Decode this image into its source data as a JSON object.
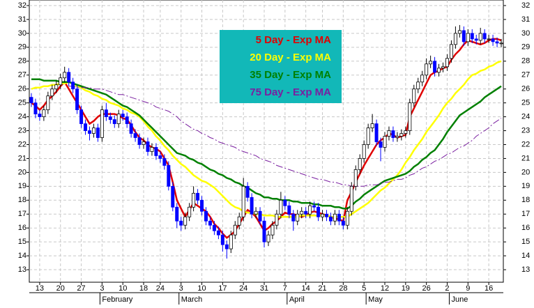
{
  "chart_data": {
    "type": "candlestick",
    "categories": [
      null,
      null,
      "13",
      null,
      null,
      null,
      null,
      "20",
      null,
      null,
      null,
      null,
      "27",
      null,
      null,
      null,
      null,
      "3",
      null,
      null,
      null,
      null,
      "10",
      null,
      null,
      null,
      null,
      "18",
      null,
      null,
      null,
      "24",
      null,
      null,
      null,
      null,
      "3",
      null,
      null,
      null,
      null,
      "10",
      null,
      null,
      null,
      null,
      "17",
      null,
      null,
      null,
      null,
      "24",
      null,
      null,
      null,
      null,
      "31",
      null,
      null,
      null,
      null,
      "7",
      null,
      null,
      null,
      null,
      "14",
      null,
      null,
      null,
      "21",
      null,
      null,
      null,
      null,
      "28",
      null,
      null,
      null,
      null,
      "5",
      null,
      null,
      null,
      null,
      "12",
      null,
      null,
      null,
      null,
      "19",
      null,
      null,
      null,
      null,
      "26",
      null,
      null,
      null,
      null,
      "2",
      null,
      null,
      null,
      null,
      "9",
      null,
      null,
      null,
      null,
      "16",
      null,
      null,
      null
    ],
    "month_labels": [
      null,
      null,
      null,
      null,
      null,
      null,
      null,
      null,
      null,
      null,
      null,
      null,
      null,
      null,
      null,
      null,
      null,
      "February",
      null,
      null,
      null,
      null,
      null,
      null,
      null,
      null,
      null,
      null,
      null,
      null,
      null,
      null,
      null,
      null,
      null,
      null,
      "March",
      null,
      null,
      null,
      null,
      null,
      null,
      null,
      null,
      null,
      null,
      null,
      null,
      null,
      null,
      null,
      null,
      null,
      null,
      null,
      null,
      null,
      null,
      null,
      null,
      null,
      "April",
      null,
      null,
      null,
      null,
      null,
      null,
      null,
      null,
      null,
      null,
      null,
      null,
      null,
      null,
      null,
      null,
      null,
      null,
      "May",
      null,
      null,
      null,
      null,
      null,
      null,
      null,
      null,
      null,
      null,
      null,
      null,
      null,
      null,
      null,
      null,
      null,
      null,
      null,
      "June",
      null,
      null,
      null,
      null,
      null,
      null,
      null,
      null,
      null,
      null,
      null,
      null,
      null
    ],
    "open": [
      25.4,
      25.0,
      24.2,
      24.0,
      24.5,
      25.5,
      26.0,
      26.3,
      26.8,
      27.2,
      26.5,
      26.0,
      24.5,
      23.5,
      23.0,
      22.8,
      23.2,
      22.5,
      24.5,
      24.0,
      23.8,
      23.5,
      24.2,
      24.0,
      23.5,
      22.8,
      22.5,
      22.0,
      22.2,
      21.5,
      21.8,
      21.2,
      21.0,
      20.5,
      19.0,
      17.5,
      16.5,
      16.2,
      16.8,
      17.5,
      18.5,
      18.0,
      17.2,
      16.5,
      16.2,
      15.8,
      15.5,
      14.8,
      14.5,
      15.5,
      16.2,
      16.8,
      19.0,
      18.2,
      17.0,
      17.2,
      16.5,
      15.0,
      15.5,
      16.2,
      17.0,
      18.0,
      17.6,
      17.0,
      16.5,
      17.0,
      17.2,
      17.0,
      17.6,
      17.5,
      16.8,
      17.0,
      16.8,
      16.5,
      17.0,
      16.5,
      16.2,
      17.2,
      19.0,
      20.2,
      21.0,
      22.0,
      23.2,
      23.5,
      22.2,
      21.8,
      22.6,
      23.0,
      22.5,
      22.6,
      22.8,
      23.0,
      25.0,
      26.0,
      26.5,
      27.0,
      27.8,
      28.0,
      27.2,
      27.5,
      27.6,
      28.2,
      29.2,
      30.0,
      30.2,
      29.4,
      30.0,
      29.6,
      29.5,
      30.0,
      29.6,
      29.6,
      29.4,
      29.3
    ],
    "high": [
      25.7,
      25.3,
      24.5,
      24.8,
      25.8,
      26.3,
      26.6,
      27.1,
      27.6,
      27.5,
      26.8,
      26.3,
      24.8,
      23.8,
      23.3,
      23.5,
      23.5,
      24.8,
      25.0,
      24.3,
      24.1,
      24.5,
      24.5,
      24.3,
      23.8,
      23.1,
      22.8,
      22.5,
      22.5,
      22.1,
      22.1,
      21.5,
      21.3,
      20.8,
      19.3,
      17.8,
      16.8,
      17.1,
      17.8,
      19.0,
      18.8,
      18.3,
      17.5,
      16.8,
      16.5,
      16.1,
      15.8,
      15.1,
      15.8,
      16.5,
      17.1,
      19.6,
      19.3,
      18.5,
      17.5,
      17.5,
      16.8,
      15.8,
      16.5,
      17.3,
      18.6,
      18.3,
      17.9,
      17.3,
      17.3,
      17.5,
      17.5,
      17.9,
      17.9,
      17.8,
      17.3,
      17.3,
      17.1,
      17.3,
      17.3,
      16.8,
      17.5,
      19.3,
      20.5,
      21.3,
      22.3,
      23.5,
      24.2,
      23.8,
      22.5,
      22.9,
      23.3,
      23.3,
      22.9,
      23.1,
      23.3,
      25.3,
      26.3,
      26.8,
      27.3,
      28.2,
      28.4,
      28.3,
      27.8,
      27.9,
      28.5,
      29.5,
      30.5,
      30.6,
      30.5,
      30.3,
      30.3,
      29.9,
      30.4,
      30.3,
      29.9,
      29.9,
      29.7,
      29.6
    ],
    "low": [
      24.7,
      23.9,
      23.7,
      23.7,
      24.2,
      25.2,
      25.7,
      26.0,
      26.5,
      26.2,
      25.7,
      24.2,
      23.2,
      22.7,
      22.3,
      22.5,
      22.2,
      22.2,
      23.7,
      23.5,
      23.2,
      23.2,
      23.7,
      23.2,
      22.5,
      22.2,
      21.7,
      21.7,
      21.2,
      21.2,
      20.9,
      20.7,
      20.2,
      18.7,
      17.2,
      16.0,
      15.8,
      15.9,
      16.5,
      17.2,
      17.7,
      16.9,
      16.2,
      15.9,
      15.5,
      15.2,
      14.3,
      13.8,
      14.2,
      15.2,
      15.9,
      16.5,
      17.9,
      16.7,
      16.7,
      16.2,
      14.6,
      14.7,
      15.2,
      15.9,
      16.7,
      17.3,
      16.7,
      15.8,
      16.2,
      16.7,
      16.7,
      16.7,
      17.2,
      16.5,
      16.5,
      16.5,
      16.2,
      16.2,
      16.2,
      15.9,
      15.9,
      16.9,
      18.7,
      19.9,
      20.7,
      21.7,
      22.9,
      21.9,
      20.8,
      21.5,
      22.3,
      22.2,
      22.2,
      22.3,
      22.5,
      22.7,
      24.7,
      25.7,
      26.2,
      26.7,
      27.5,
      26.9,
      26.9,
      27.2,
      27.3,
      27.9,
      28.9,
      29.7,
      29.1,
      29.1,
      29.3,
      29.2,
      29.2,
      29.3,
      29.3,
      29.1,
      29.0,
      29.0
    ],
    "close": [
      25.0,
      24.2,
      24.0,
      24.5,
      25.5,
      26.0,
      26.3,
      26.8,
      27.2,
      26.5,
      26.0,
      24.5,
      23.5,
      23.0,
      22.8,
      23.2,
      22.5,
      24.5,
      24.0,
      23.8,
      23.5,
      24.2,
      24.0,
      23.5,
      22.8,
      22.5,
      22.0,
      22.2,
      21.5,
      21.8,
      21.2,
      21.0,
      20.5,
      19.0,
      17.5,
      16.5,
      16.2,
      16.8,
      17.5,
      18.5,
      18.0,
      17.2,
      16.5,
      16.2,
      15.8,
      15.5,
      14.8,
      14.5,
      15.5,
      16.2,
      16.8,
      19.0,
      18.2,
      17.0,
      17.2,
      16.5,
      15.0,
      15.5,
      16.2,
      17.0,
      18.0,
      17.6,
      17.0,
      16.5,
      17.0,
      17.2,
      17.0,
      17.6,
      17.5,
      16.8,
      17.0,
      16.8,
      16.5,
      17.0,
      16.5,
      16.2,
      17.2,
      19.0,
      20.2,
      21.0,
      22.0,
      23.2,
      23.5,
      22.2,
      21.8,
      22.6,
      23.0,
      22.5,
      22.6,
      22.8,
      23.0,
      25.0,
      26.0,
      26.5,
      27.0,
      27.8,
      28.0,
      27.2,
      27.5,
      27.6,
      28.2,
      29.2,
      30.0,
      30.2,
      29.4,
      30.0,
      29.6,
      29.5,
      30.0,
      29.6,
      29.6,
      29.4,
      29.3,
      29.3
    ],
    "up_color": "#ffffff",
    "down_color": "#0000ff",
    "series": [
      {
        "name": "5 Day - Exp MA",
        "color": "#e00000",
        "width": 2.5,
        "dash": "none",
        "values": [
          25.0,
          24.8,
          24.5,
          24.8,
          25.2,
          25.5,
          25.8,
          26.2,
          26.5,
          26.0,
          25.5,
          25.0,
          24.5,
          24.0,
          23.5,
          23.7,
          24.0,
          24.2,
          24.2,
          24.2,
          24.2,
          24.1,
          23.9,
          23.8,
          23.4,
          22.9,
          22.5,
          22.3,
          22.0,
          21.8,
          21.7,
          21.5,
          21.0,
          20.5,
          19.3,
          18.0,
          17.4,
          16.8,
          17.3,
          17.8,
          17.6,
          17.4,
          17.2,
          16.8,
          16.3,
          16.0,
          15.6,
          15.3,
          15.5,
          15.8,
          16.3,
          16.8,
          17.3,
          17.1,
          16.8,
          16.3,
          15.8,
          16.0,
          16.3,
          16.5,
          16.8,
          17.1,
          17.0,
          17.0,
          16.9,
          16.8,
          16.9,
          17.1,
          17.2,
          17.1,
          17.0,
          16.9,
          16.8,
          16.7,
          16.6,
          16.5,
          18.0,
          18.6,
          19.3,
          19.9,
          20.5,
          21.0,
          21.5,
          22.0,
          22.3,
          22.5,
          22.8,
          22.7,
          22.5,
          22.6,
          22.7,
          24.0,
          24.6,
          25.2,
          25.8,
          26.4,
          27.0,
          27.2,
          27.3,
          27.5,
          27.6,
          28.1,
          28.5,
          28.8,
          29.2,
          29.5,
          29.4,
          29.3,
          29.2,
          29.3,
          29.5,
          29.6,
          29.6,
          29.5
        ]
      },
      {
        "name": "20 Day - Exp MA",
        "color": "#ffff00",
        "width": 2.5,
        "dash": "none",
        "values": [
          26.0,
          26.1,
          26.1,
          26.2,
          26.2,
          26.3,
          26.3,
          26.4,
          26.4,
          26.5,
          26.4,
          26.2,
          26.1,
          25.9,
          25.8,
          25.6,
          25.5,
          25.3,
          25.2,
          25.0,
          24.9,
          24.8,
          24.6,
          24.5,
          24.3,
          24.2,
          24.0,
          23.7,
          23.3,
          23.0,
          22.6,
          22.3,
          21.9,
          21.6,
          21.2,
          20.9,
          20.6,
          20.4,
          20.1,
          19.8,
          19.6,
          19.4,
          19.3,
          19.1,
          18.9,
          18.6,
          18.3,
          18.0,
          17.7,
          17.5,
          17.4,
          17.2,
          17.1,
          17.1,
          17.0,
          17.0,
          16.9,
          16.9,
          16.9,
          16.8,
          16.8,
          16.8,
          16.8,
          16.8,
          16.8,
          16.9,
          16.9,
          16.9,
          16.9,
          16.9,
          16.9,
          16.9,
          16.8,
          16.8,
          16.8,
          16.8,
          16.8,
          17.0,
          17.2,
          17.4,
          17.6,
          17.8,
          18.1,
          18.4,
          18.7,
          18.9,
          19.2,
          19.5,
          19.8,
          20.2,
          20.7,
          21.1,
          21.6,
          22.0,
          22.4,
          22.9,
          23.3,
          23.7,
          24.1,
          24.6,
          25.0,
          25.3,
          25.7,
          26.0,
          26.3,
          26.7,
          27.0,
          27.1,
          27.3,
          27.4,
          27.6,
          27.7,
          27.9,
          28.0
        ]
      },
      {
        "name": "35 Day - Exp MA",
        "color": "#008000",
        "width": 2.5,
        "dash": "none",
        "values": [
          26.7,
          26.7,
          26.7,
          26.6,
          26.6,
          26.6,
          26.6,
          26.5,
          26.5,
          26.5,
          26.4,
          26.3,
          26.2,
          26.1,
          26.0,
          25.9,
          25.8,
          25.7,
          25.6,
          25.4,
          25.2,
          25.0,
          24.8,
          24.7,
          24.5,
          24.3,
          24.1,
          23.8,
          23.5,
          23.2,
          22.9,
          22.6,
          22.3,
          22.0,
          21.7,
          21.4,
          21.3,
          21.2,
          21.0,
          20.9,
          20.7,
          20.6,
          20.4,
          20.2,
          20.1,
          19.9,
          19.8,
          19.6,
          19.5,
          19.3,
          19.2,
          19.0,
          18.9,
          18.7,
          18.5,
          18.4,
          18.2,
          18.2,
          18.1,
          18.1,
          18.0,
          18.0,
          18.0,
          17.9,
          17.9,
          17.8,
          17.8,
          17.8,
          17.7,
          17.7,
          17.6,
          17.6,
          17.6,
          17.5,
          17.5,
          17.4,
          17.4,
          17.6,
          17.9,
          18.1,
          18.4,
          18.6,
          18.8,
          19.0,
          19.2,
          19.4,
          19.5,
          19.6,
          19.7,
          19.8,
          19.9,
          20.1,
          20.4,
          20.6,
          20.9,
          21.1,
          21.4,
          21.6,
          22.0,
          22.4,
          22.9,
          23.3,
          23.7,
          24.1,
          24.3,
          24.5,
          24.7,
          24.9,
          25.1,
          25.4,
          25.6,
          25.8,
          26.0,
          26.2
        ]
      },
      {
        "name": "75 Day - Exp MA",
        "color": "#7a1fa0",
        "width": 1,
        "dash": "10 3 2 3",
        "values": [
          null,
          null,
          null,
          null,
          null,
          null,
          null,
          null,
          null,
          26.2,
          26.2,
          26.1,
          26.1,
          26.1,
          26.1,
          26.0,
          26.0,
          26.0,
          25.9,
          25.8,
          25.7,
          25.6,
          25.6,
          25.5,
          25.4,
          25.3,
          25.2,
          25.1,
          25.0,
          24.9,
          24.7,
          24.6,
          24.5,
          24.4,
          24.2,
          24.0,
          23.7,
          23.5,
          23.3,
          23.1,
          23.0,
          22.8,
          22.7,
          22.5,
          22.4,
          22.2,
          22.1,
          22.0,
          21.9,
          21.8,
          21.6,
          21.5,
          21.4,
          21.3,
          21.2,
          21.0,
          20.9,
          20.8,
          20.7,
          20.5,
          20.4,
          20.3,
          20.2,
          20.1,
          20.0,
          19.9,
          19.8,
          19.7,
          19.6,
          19.5,
          19.5,
          19.4,
          19.3,
          19.3,
          19.2,
          19.1,
          19.1,
          19.0,
          19.0,
          19.0,
          19.0,
          19.1,
          19.1,
          19.1,
          19.2,
          19.3,
          19.3,
          19.4,
          19.5,
          19.5,
          19.6,
          19.8,
          19.9,
          20.1,
          20.3,
          20.4,
          20.6,
          20.8,
          20.9,
          21.1,
          21.3,
          21.4,
          21.6,
          21.8,
          21.9,
          22.1,
          22.3,
          22.6,
          22.8,
          23.0,
          23.2,
          23.5,
          23.7,
          23.9
        ]
      }
    ],
    "ylim": [
      12.1,
      32.4
    ],
    "yticks": [
      13,
      14,
      15,
      16,
      17,
      18,
      19,
      20,
      21,
      22,
      23,
      24,
      25,
      26,
      27,
      28,
      29,
      30,
      31,
      32
    ],
    "grid": true,
    "legend_color": "#12b8b8"
  }
}
